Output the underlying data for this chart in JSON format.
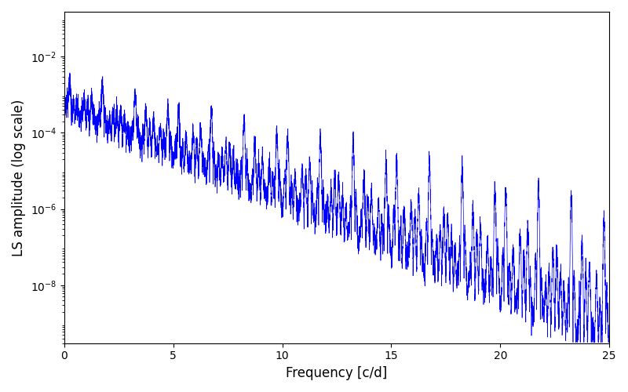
{
  "xlabel": "Frequency [c/d]",
  "ylabel": "LS amplitude (log scale)",
  "xlim": [
    0,
    25
  ],
  "ylim_log": [
    3e-10,
    0.15
  ],
  "line_color": "blue",
  "line_width": 0.5,
  "background_color": "#ffffff",
  "yticks": [
    1e-08,
    1e-06,
    0.0001,
    0.01
  ],
  "xticks": [
    0,
    5,
    10,
    15,
    20,
    25
  ],
  "figsize": [
    8.0,
    5.0
  ],
  "dpi": 100,
  "seed": 123,
  "n_points": 8000
}
